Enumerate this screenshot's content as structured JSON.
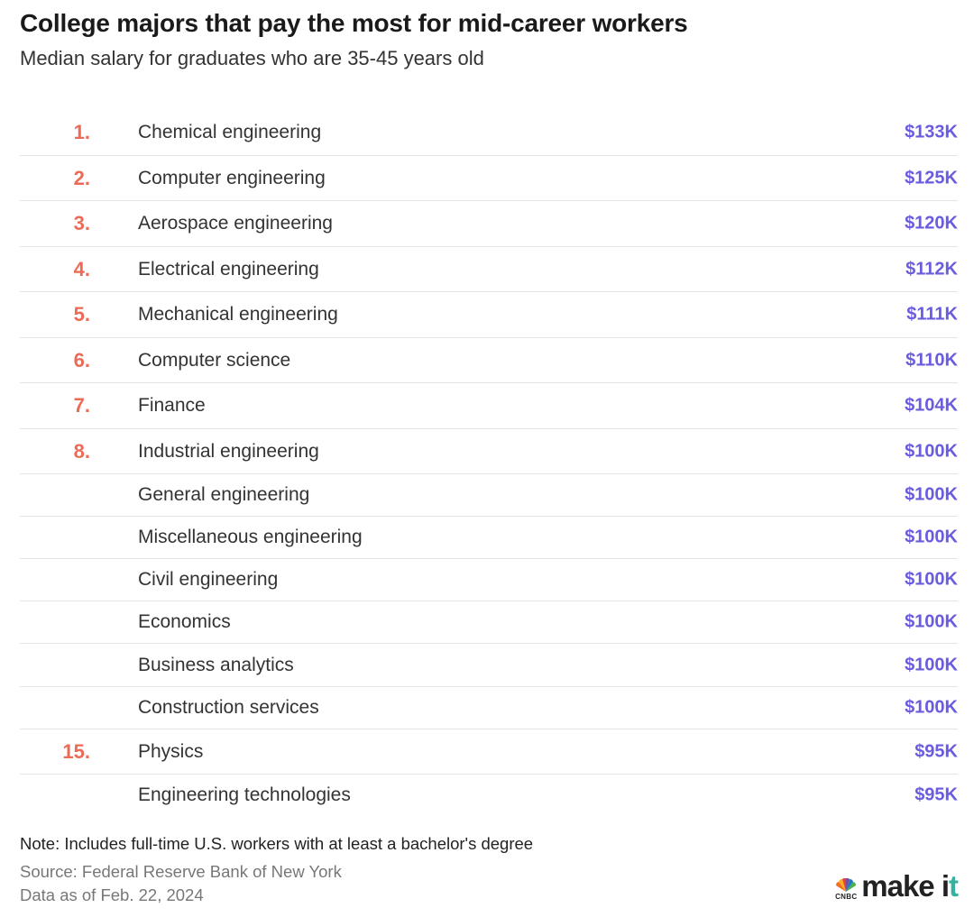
{
  "chart_data": {
    "type": "table",
    "title": "College majors that pay the most for mid-career workers",
    "subtitle": "Median salary for graduates who are 35-45 years old",
    "rows": [
      {
        "rank": "1.",
        "major": "Chemical engineering",
        "salary": "$133K"
      },
      {
        "rank": "2.",
        "major": "Computer engineering",
        "salary": "$125K"
      },
      {
        "rank": "3.",
        "major": "Aerospace engineering",
        "salary": "$120K"
      },
      {
        "rank": "4.",
        "major": "Electrical engineering",
        "salary": "$112K"
      },
      {
        "rank": "5.",
        "major": "Mechanical engineering",
        "salary": "$111K"
      },
      {
        "rank": "6.",
        "major": "Computer science",
        "salary": "$110K"
      },
      {
        "rank": "7.",
        "major": "Finance",
        "salary": "$104K"
      },
      {
        "rank": "8.",
        "major": "Industrial engineering",
        "salary": "$100K"
      },
      {
        "rank": "",
        "major": "General engineering",
        "salary": "$100K"
      },
      {
        "rank": "",
        "major": "Miscellaneous engineering",
        "salary": "$100K"
      },
      {
        "rank": "",
        "major": "Civil engineering",
        "salary": "$100K"
      },
      {
        "rank": "",
        "major": "Economics",
        "salary": "$100K"
      },
      {
        "rank": "",
        "major": "Business analytics",
        "salary": "$100K"
      },
      {
        "rank": "",
        "major": "Construction services",
        "salary": "$100K"
      },
      {
        "rank": "15.",
        "major": "Physics",
        "salary": "$95K"
      },
      {
        "rank": "",
        "major": "Engineering technologies",
        "salary": "$95K"
      }
    ]
  },
  "footer": {
    "note": "Note: Includes full-time U.S. workers with at least a bachelor's degree",
    "source": "Source: Federal Reserve Bank of New York",
    "as_of": "Data as of Feb. 22, 2024"
  },
  "logo": {
    "cnbc": "CNBC",
    "brand_main": "make i",
    "brand_accent": "t",
    "icon": "peacock-icon"
  },
  "colors": {
    "rank": "#ec6b56",
    "salary": "#6a5cdf",
    "divider": "#e4e4e4"
  }
}
